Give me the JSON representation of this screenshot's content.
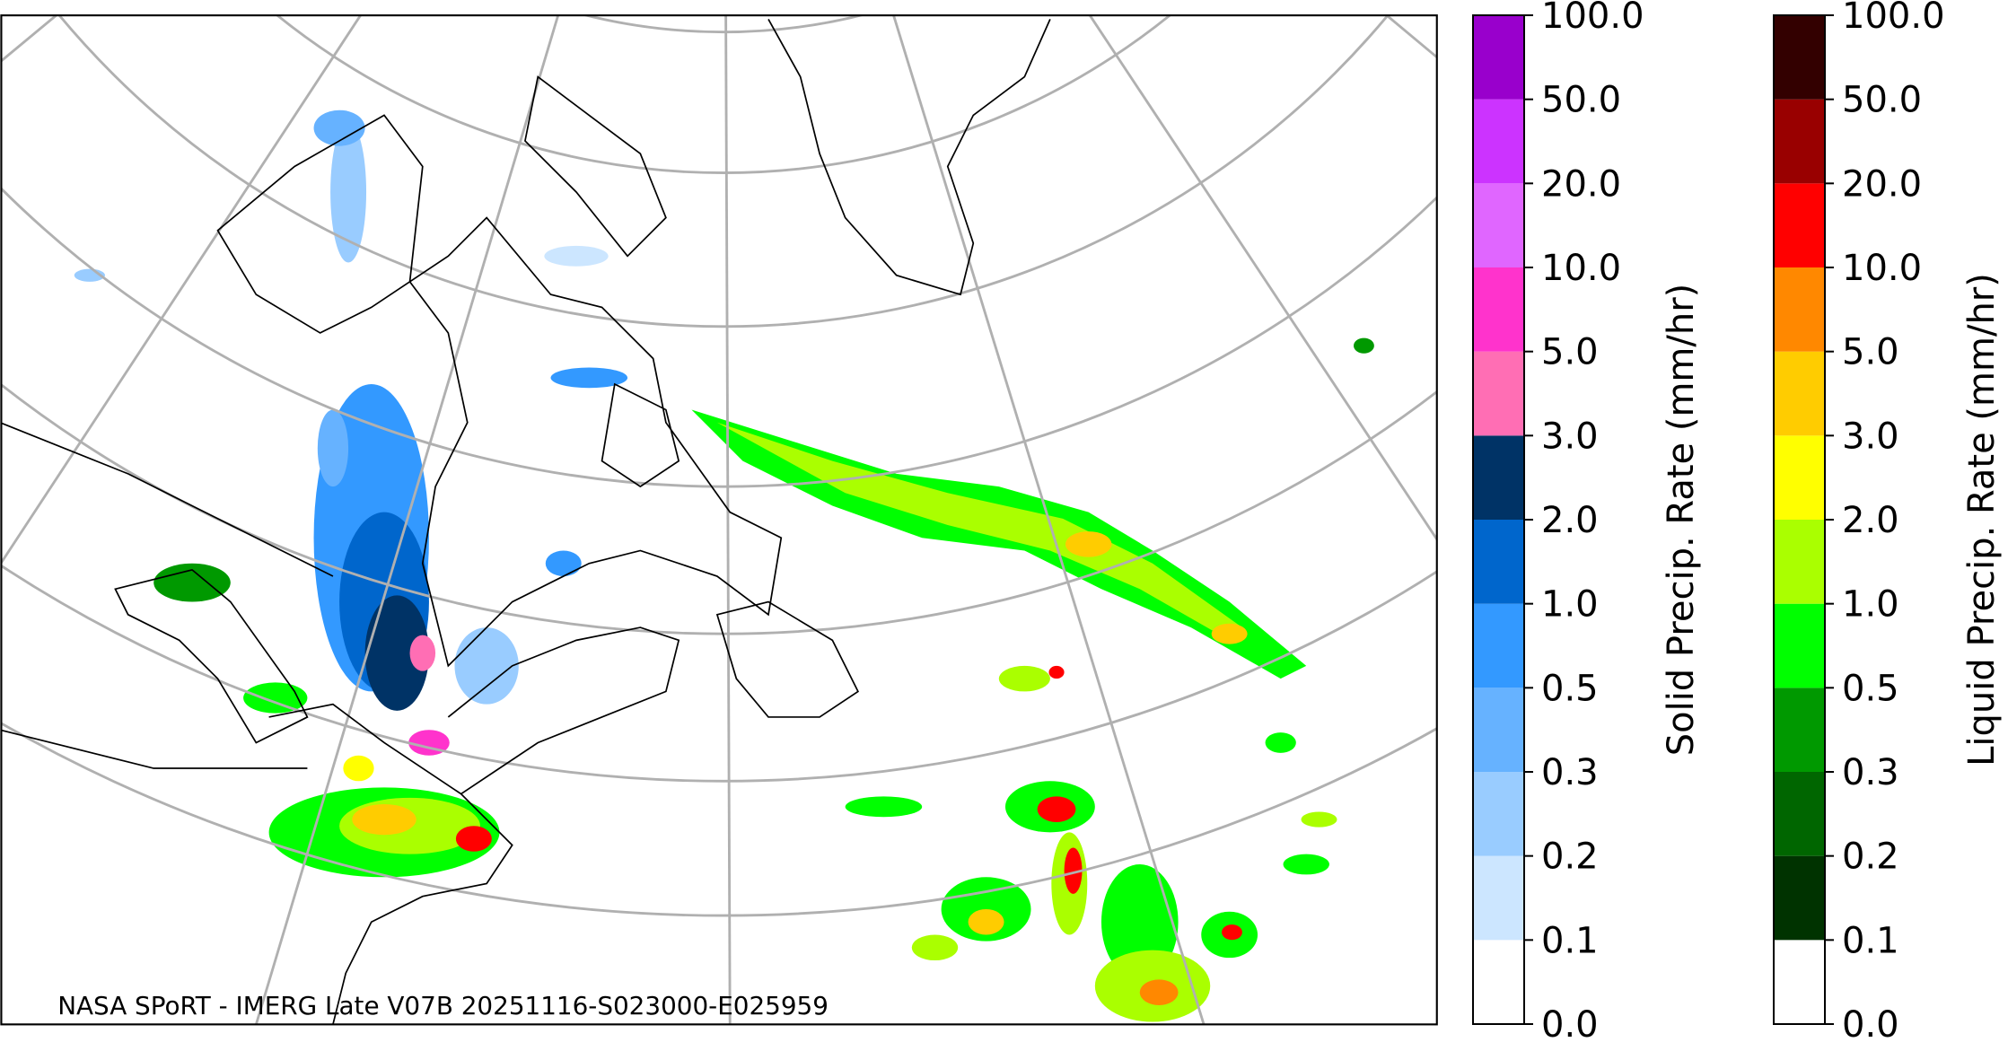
{
  "map": {
    "caption": "NASA SPoRT - IMERG Late V07B 20251116-S023000-E025959"
  },
  "colorbars": [
    {
      "label": "Solid Precip. Rate (mm/hr)",
      "ticks": [
        "0.0",
        "0.1",
        "0.2",
        "0.3",
        "0.5",
        "1.0",
        "2.0",
        "3.0",
        "5.0",
        "10.0",
        "20.0",
        "50.0",
        "100.0"
      ],
      "colors": [
        "#ffffff",
        "#cce6ff",
        "#99ccff",
        "#66b2ff",
        "#3399ff",
        "#0066cc",
        "#003366",
        "#ff6eb4",
        "#ff33cc",
        "#e066ff",
        "#cc33ff",
        "#9900cc"
      ]
    },
    {
      "label": "Liquid Precip. Rate (mm/hr)",
      "ticks": [
        "0.0",
        "0.1",
        "0.2",
        "0.3",
        "0.5",
        "1.0",
        "2.0",
        "3.0",
        "5.0",
        "10.0",
        "20.0",
        "50.0",
        "100.0"
      ],
      "colors": [
        "#ffffff",
        "#003300",
        "#006600",
        "#009900",
        "#00ff00",
        "#aaff00",
        "#ffff00",
        "#ffcc00",
        "#ff8800",
        "#ff0000",
        "#990000",
        "#330000"
      ]
    }
  ]
}
